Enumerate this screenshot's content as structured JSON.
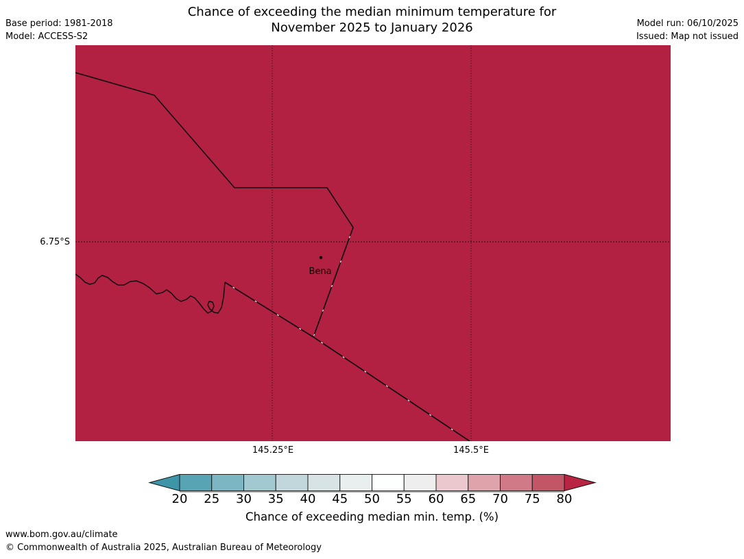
{
  "header": {
    "title_line1": "Chance of exceeding the median minimum temperature for",
    "title_line2": "November 2025 to January 2026",
    "base_period": "Base period: 1981-2018",
    "model": "Model: ACCESS-S2",
    "model_run": "Model run: 06/10/2025",
    "issued": "Issued: Map not issued"
  },
  "map": {
    "fill_color": "#b22142",
    "lat_label": "6.75°S",
    "lon_labels": {
      "0": "145.25°E",
      "1": "145.5°E"
    },
    "place_label": "Bena"
  },
  "colorbar": {
    "caption": "Chance of exceeding median min. temp. (%)",
    "tick_labels": [
      "20",
      "25",
      "30",
      "35",
      "40",
      "45",
      "50",
      "55",
      "60",
      "65",
      "70",
      "75",
      "80"
    ],
    "segment_colors": [
      "#57a4b4",
      "#7cb6c2",
      "#a2c8d0",
      "#c2d7db",
      "#d8e3e6",
      "#e9eeee",
      "#fdfefe",
      "#efeeee",
      "#ebc8cd",
      "#dfa3ac",
      "#d07a87",
      "#c25666"
    ],
    "arrow_left_color": "#3e95a8",
    "arrow_right_color": "#b92442",
    "outline_color": "#111111"
  },
  "footer": {
    "url": "www.bom.gov.au/climate",
    "copyright": "© Commonwealth of Australia 2025, Australian Bureau of Meteorology"
  }
}
